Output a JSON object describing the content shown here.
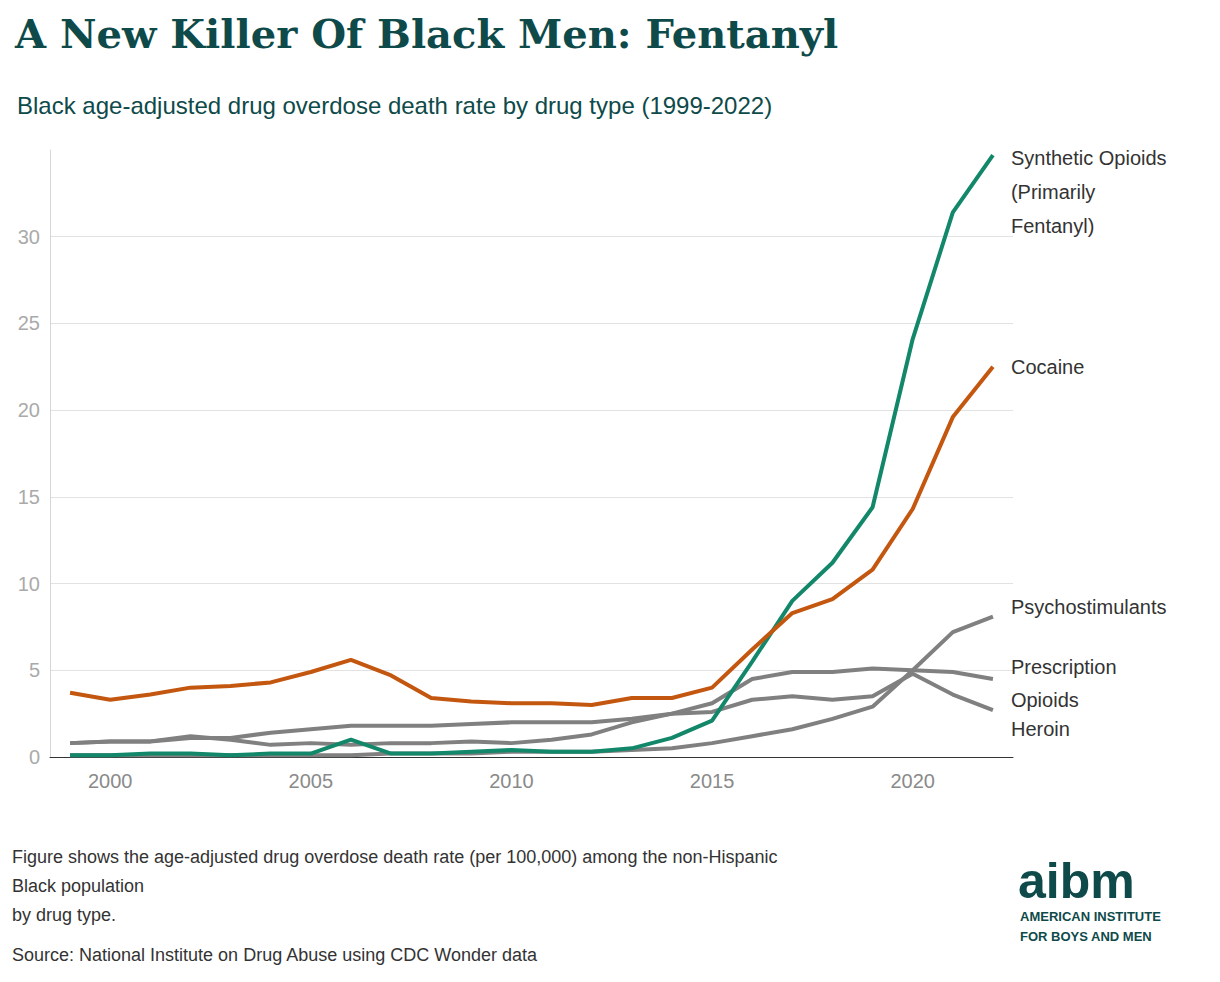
{
  "chart_data": {
    "type": "line",
    "title": "A New Killer Of Black Men: Fentanyl",
    "subtitle": "Black age-adjusted drug overdose death rate by drug type (1999-2022)",
    "x": [
      1999,
      2000,
      2001,
      2002,
      2003,
      2004,
      2005,
      2006,
      2007,
      2008,
      2009,
      2010,
      2011,
      2012,
      2013,
      2014,
      2015,
      2016,
      2017,
      2018,
      2019,
      2020,
      2021,
      2022
    ],
    "xlim": [
      1998.5,
      2022.5
    ],
    "xticks": [
      2000,
      2005,
      2010,
      2015,
      2020
    ],
    "ylim": [
      0,
      35
    ],
    "yticks": [
      0,
      5,
      10,
      15,
      20,
      25,
      30
    ],
    "grid": true,
    "series": [
      {
        "name": "Synthetic Opioids (Primarily Fentanyl)",
        "color": "#12876a",
        "values": [
          0.1,
          0.1,
          0.2,
          0.2,
          0.1,
          0.2,
          0.2,
          1.0,
          0.2,
          0.2,
          0.3,
          0.4,
          0.3,
          0.3,
          0.5,
          1.1,
          2.1,
          5.5,
          9.0,
          11.2,
          14.4,
          24.1,
          31.4,
          34.7
        ]
      },
      {
        "name": "Cocaine",
        "color": "#c4570f",
        "values": [
          3.7,
          3.3,
          3.6,
          4.0,
          4.1,
          4.3,
          4.9,
          5.6,
          4.7,
          3.4,
          3.2,
          3.1,
          3.1,
          3.0,
          3.4,
          3.4,
          4.0,
          6.2,
          8.3,
          9.1,
          10.8,
          14.3,
          19.6,
          22.5
        ]
      },
      {
        "name": "Psychostimulants",
        "color": "#808080",
        "values": [
          0.1,
          0.1,
          0.1,
          0.1,
          0.1,
          0.1,
          0.1,
          0.1,
          0.2,
          0.2,
          0.2,
          0.3,
          0.3,
          0.3,
          0.4,
          0.5,
          0.8,
          1.2,
          1.6,
          2.2,
          2.9,
          5.0,
          7.2,
          8.1
        ]
      },
      {
        "name": "Prescription Opioids",
        "color": "#808080",
        "values": [
          0.8,
          0.9,
          0.9,
          1.1,
          1.1,
          1.4,
          1.6,
          1.8,
          1.8,
          1.8,
          1.9,
          2.0,
          2.0,
          2.0,
          2.2,
          2.5,
          3.1,
          4.5,
          4.9,
          4.9,
          5.1,
          5.0,
          4.9,
          4.5
        ]
      },
      {
        "name": "Heroin",
        "color": "#808080",
        "values": [
          0.8,
          0.9,
          0.9,
          1.2,
          1.0,
          0.7,
          0.8,
          0.7,
          0.8,
          0.8,
          0.9,
          0.8,
          1.0,
          1.3,
          2.0,
          2.5,
          2.6,
          3.3,
          3.5,
          3.3,
          3.5,
          4.8,
          3.6,
          2.7
        ]
      }
    ]
  },
  "caption": [
    "Figure shows the age-adjusted drug overdose death rate (per 100,000) among the non-Hispanic",
    "Black population",
    "by drug type."
  ],
  "source": "Source: National Institute on Drug Abuse using CDC Wonder data",
  "logo": {
    "name": "aibm",
    "lines": [
      "AMERICAN INSTITUTE",
      "FOR BOYS AND MEN"
    ]
  }
}
